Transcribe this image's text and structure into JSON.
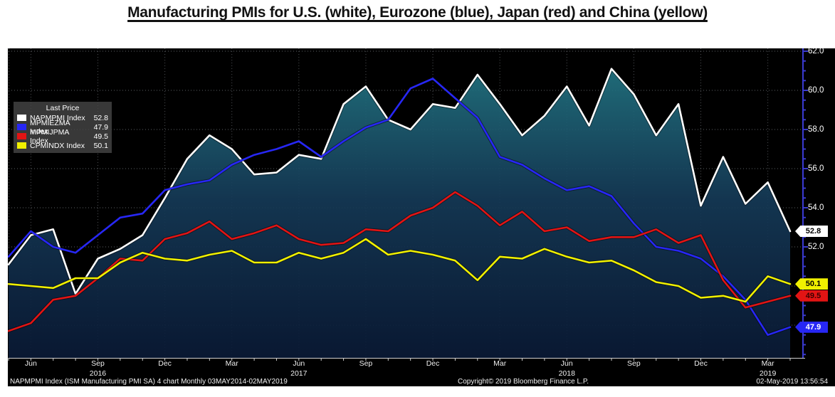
{
  "title": "Manufacturing PMIs for U.S. (white), Eurozone (blue), Japan (red) and China (yellow)",
  "footer": {
    "left": "NAPMPMI Index (ISM Manufacturing PMI SA) 4 chart  Monthly 03MAY2014-02MAY2019",
    "center": "Copyright© 2019 Bloomberg Finance L.P.",
    "right": "02-May-2019 13:56:54"
  },
  "legend": {
    "title": "Last Price"
  },
  "colors": {
    "axis_blue": "#3a3ad0",
    "grid": "#aab0b8",
    "x_baseline": "#d0d0d0",
    "plot_background": "#000000"
  },
  "chart_data": {
    "type": "line",
    "note": "Mountain/area style for first series, lines for the rest",
    "months": [
      "2016-05",
      "2016-06",
      "2016-07",
      "2016-08",
      "2016-09",
      "2016-10",
      "2016-11",
      "2016-12",
      "2017-01",
      "2017-02",
      "2017-03",
      "2017-04",
      "2017-05",
      "2017-06",
      "2017-07",
      "2017-08",
      "2017-09",
      "2017-10",
      "2017-11",
      "2017-12",
      "2018-01",
      "2018-02",
      "2018-03",
      "2018-04",
      "2018-05",
      "2018-06",
      "2018-07",
      "2018-08",
      "2018-09",
      "2018-10",
      "2018-11",
      "2018-12",
      "2019-01",
      "2019-02",
      "2019-03",
      "2019-04"
    ],
    "series": [
      {
        "name": "NAPMPMI Index",
        "region": "U.S.",
        "color": "#ffffff",
        "style": "area",
        "last": 52.8,
        "pill_text": "#000000",
        "values": [
          51.1,
          52.6,
          52.9,
          49.6,
          51.4,
          51.9,
          52.6,
          54.5,
          56.5,
          57.7,
          57.0,
          55.7,
          55.8,
          56.7,
          56.5,
          59.3,
          60.2,
          58.5,
          58.0,
          59.3,
          59.1,
          60.8,
          59.3,
          57.7,
          58.7,
          60.2,
          58.2,
          61.1,
          59.8,
          57.7,
          59.3,
          54.1,
          56.6,
          54.2,
          55.3,
          52.8
        ]
      },
      {
        "name": "MPMIEZMA Index",
        "region": "Eurozone",
        "color": "#2727f5",
        "style": "line",
        "last": 47.9,
        "pill_text": "#ffffff",
        "values": [
          51.5,
          52.8,
          52.0,
          51.7,
          52.6,
          53.5,
          53.7,
          54.9,
          55.2,
          55.4,
          56.2,
          56.7,
          57.0,
          57.4,
          56.6,
          57.4,
          58.1,
          58.5,
          60.1,
          60.6,
          59.6,
          58.6,
          56.6,
          56.2,
          55.5,
          54.9,
          55.1,
          54.6,
          53.2,
          52.0,
          51.8,
          51.4,
          50.5,
          49.3,
          47.5,
          47.9
        ]
      },
      {
        "name": "MPMIJPMA Index",
        "region": "Japan",
        "color": "#e21414",
        "style": "line",
        "last": 49.5,
        "pill_text": "#3c0000",
        "values": [
          47.7,
          48.1,
          49.3,
          49.5,
          50.4,
          51.4,
          51.3,
          52.4,
          52.7,
          53.3,
          52.4,
          52.7,
          53.1,
          52.4,
          52.1,
          52.2,
          52.9,
          52.8,
          53.6,
          54.0,
          54.8,
          54.1,
          53.1,
          53.8,
          52.8,
          53.0,
          52.3,
          52.5,
          52.5,
          52.9,
          52.2,
          52.6,
          50.3,
          48.9,
          49.2,
          49.5
        ]
      },
      {
        "name": "CPMINDX Index",
        "region": "China",
        "color": "#f0f000",
        "style": "line",
        "last": 50.1,
        "pill_text": "#000000",
        "values": [
          50.1,
          50.0,
          49.9,
          50.4,
          50.4,
          51.2,
          51.7,
          51.4,
          51.3,
          51.6,
          51.8,
          51.2,
          51.2,
          51.7,
          51.4,
          51.7,
          52.4,
          51.6,
          51.8,
          51.6,
          51.3,
          50.3,
          51.5,
          51.4,
          51.9,
          51.5,
          51.2,
          51.3,
          50.8,
          50.2,
          50.0,
          49.4,
          49.5,
          49.2,
          50.5,
          50.1
        ]
      }
    ],
    "x_ticks": [
      {
        "idx": 1,
        "label": "Jun"
      },
      {
        "idx": 4,
        "label": "Sep",
        "year": "2016"
      },
      {
        "idx": 7,
        "label": "Dec"
      },
      {
        "idx": 10,
        "label": "Mar"
      },
      {
        "idx": 13,
        "label": "Jun",
        "year": "2017"
      },
      {
        "idx": 16,
        "label": "Sep"
      },
      {
        "idx": 19,
        "label": "Dec"
      },
      {
        "idx": 22,
        "label": "Mar"
      },
      {
        "idx": 25,
        "label": "Jun",
        "year": "2018"
      },
      {
        "idx": 28,
        "label": "Sep"
      },
      {
        "idx": 31,
        "label": "Dec"
      },
      {
        "idx": 34,
        "label": "Mar",
        "year": "2019"
      }
    ],
    "y_tick_labels": [
      62.0,
      60.0,
      58.0,
      56.0,
      54.0,
      52.0
    ],
    "grid_y": [
      62,
      60,
      58,
      56,
      54,
      52,
      50,
      48
    ],
    "ylim": [
      46.3,
      62.15
    ],
    "area_gradient": [
      [
        "0%",
        "#227482"
      ],
      [
        "45%",
        "#153a57"
      ],
      [
        "100%",
        "#0a1a36"
      ]
    ],
    "legend_position": "top-left",
    "grid": true
  }
}
